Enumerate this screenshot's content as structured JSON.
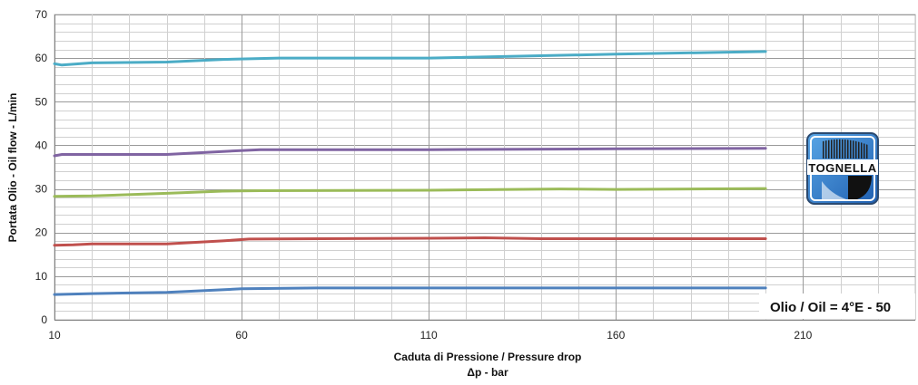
{
  "chart_data": {
    "type": "line",
    "title": "",
    "xlabel_line1": "Caduta di Pressione / Pressure drop",
    "xlabel_line2": "Δp - bar",
    "ylabel": "Portata Olio - Oil flow - L/min",
    "xlim": [
      10,
      240
    ],
    "ylim": [
      0,
      70
    ],
    "x_ticks": [
      10,
      60,
      110,
      160,
      210
    ],
    "y_ticks": [
      0,
      10,
      20,
      30,
      40,
      50,
      60,
      70
    ],
    "grid": true,
    "series": [
      {
        "color": "#4BACC6",
        "points": [
          [
            10,
            58.7
          ],
          [
            12,
            58.4
          ],
          [
            20,
            58.9
          ],
          [
            40,
            59.1
          ],
          [
            55,
            59.7
          ],
          [
            70,
            60.0
          ],
          [
            110,
            60.0
          ],
          [
            160,
            60.9
          ],
          [
            200,
            61.5
          ]
        ]
      },
      {
        "color": "#8064A2",
        "points": [
          [
            10,
            37.6
          ],
          [
            12,
            37.9
          ],
          [
            20,
            37.9
          ],
          [
            40,
            37.9
          ],
          [
            55,
            38.6
          ],
          [
            65,
            39.0
          ],
          [
            110,
            39.0
          ],
          [
            160,
            39.2
          ],
          [
            200,
            39.3
          ]
        ]
      },
      {
        "color": "#9BBB59",
        "points": [
          [
            10,
            28.3
          ],
          [
            20,
            28.4
          ],
          [
            40,
            29.0
          ],
          [
            55,
            29.5
          ],
          [
            65,
            29.6
          ],
          [
            110,
            29.7
          ],
          [
            145,
            30.0
          ],
          [
            160,
            29.9
          ],
          [
            200,
            30.1
          ]
        ]
      },
      {
        "color": "#C0504D",
        "points": [
          [
            10,
            17.1
          ],
          [
            15,
            17.2
          ],
          [
            20,
            17.4
          ],
          [
            40,
            17.4
          ],
          [
            55,
            18.1
          ],
          [
            62,
            18.5
          ],
          [
            110,
            18.7
          ],
          [
            125,
            18.8
          ],
          [
            140,
            18.6
          ],
          [
            200,
            18.6
          ]
        ]
      },
      {
        "color": "#4F81BD",
        "points": [
          [
            10,
            5.8
          ],
          [
            20,
            6.0
          ],
          [
            40,
            6.3
          ],
          [
            60,
            7.1
          ],
          [
            80,
            7.3
          ],
          [
            110,
            7.3
          ],
          [
            160,
            7.3
          ],
          [
            200,
            7.3
          ]
        ]
      }
    ]
  },
  "annotation": {
    "text": "Olio / Oil = 4°E - 50"
  },
  "logo": {
    "text": "TOGNELLA"
  }
}
